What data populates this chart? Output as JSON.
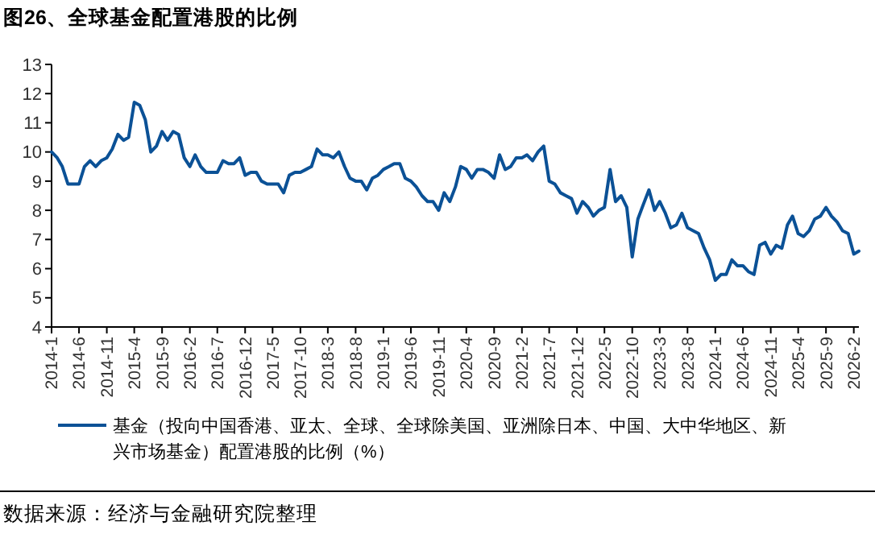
{
  "chart_data": {
    "type": "line",
    "title": "图26、全球基金配置港股的比例",
    "annotations": [
      "数据来源：经济与金融研究院整理"
    ],
    "x": [
      "2014-01",
      "2014-02",
      "2014-03",
      "2014-04",
      "2014-05",
      "2014-06",
      "2014-07",
      "2014-08",
      "2014-09",
      "2014-10",
      "2014-11",
      "2014-12",
      "2015-01",
      "2015-02",
      "2015-03",
      "2015-04",
      "2015-05",
      "2015-06",
      "2015-07",
      "2015-08",
      "2015-09",
      "2015-10",
      "2015-11",
      "2015-12",
      "2016-01",
      "2016-02",
      "2016-03",
      "2016-04",
      "2016-05",
      "2016-06",
      "2016-07",
      "2016-08",
      "2016-09",
      "2016-10",
      "2016-11",
      "2016-12",
      "2017-01",
      "2017-02",
      "2017-03",
      "2017-04",
      "2017-05",
      "2017-06",
      "2017-07",
      "2017-08",
      "2017-09",
      "2017-10",
      "2017-11",
      "2017-12",
      "2018-01",
      "2018-02",
      "2018-03",
      "2018-04",
      "2018-05",
      "2018-06",
      "2018-07",
      "2018-08",
      "2018-09",
      "2018-10",
      "2018-11",
      "2018-12",
      "2019-01",
      "2019-02",
      "2019-03",
      "2019-04",
      "2019-05",
      "2019-06",
      "2019-07",
      "2019-08",
      "2019-09",
      "2019-10",
      "2019-11",
      "2019-12",
      "2020-01",
      "2020-02",
      "2020-03",
      "2020-04",
      "2020-05",
      "2020-06",
      "2020-07",
      "2020-08",
      "2020-09",
      "2020-10",
      "2020-11",
      "2020-12",
      "2021-01",
      "2021-02",
      "2021-03",
      "2021-04",
      "2021-05",
      "2021-06",
      "2021-07",
      "2021-08",
      "2021-09",
      "2021-10",
      "2021-11",
      "2021-12",
      "2022-01",
      "2022-02",
      "2022-03",
      "2022-04",
      "2022-05",
      "2022-06",
      "2022-07",
      "2022-08",
      "2022-09",
      "2022-10",
      "2022-11",
      "2022-12",
      "2023-01",
      "2023-02",
      "2023-03",
      "2023-04",
      "2023-05",
      "2023-06",
      "2023-07",
      "2023-08",
      "2023-09",
      "2023-10",
      "2023-11",
      "2023-12",
      "2024-01",
      "2024-02",
      "2024-03",
      "2024-04",
      "2024-05",
      "2024-06",
      "2024-07",
      "2024-08",
      "2024-09",
      "2024-10",
      "2024-11",
      "2024-12",
      "2025-01",
      "2025-02",
      "2025-03",
      "2025-04",
      "2025-05",
      "2025-06",
      "2025-07",
      "2025-08",
      "2025-09",
      "2025-10",
      "2025-11",
      "2025-12",
      "2026-01",
      "2026-02",
      "2026-03"
    ],
    "series": [
      {
        "name": "基金（投向中国香港、亚太、全球、全球除美国、亚洲除日本、中国、大中华地区、新兴市场基金）配置港股的比例（%）",
        "color": "#0b5196",
        "values": [
          10.0,
          9.8,
          9.5,
          8.9,
          8.9,
          8.9,
          9.5,
          9.7,
          9.5,
          9.7,
          9.8,
          10.1,
          10.6,
          10.4,
          10.5,
          11.7,
          11.6,
          11.1,
          10.0,
          10.2,
          10.7,
          10.4,
          10.7,
          10.6,
          9.8,
          9.5,
          9.9,
          9.5,
          9.3,
          9.3,
          9.3,
          9.7,
          9.6,
          9.6,
          9.8,
          9.2,
          9.3,
          9.3,
          9.0,
          8.9,
          8.9,
          8.9,
          8.6,
          9.2,
          9.3,
          9.3,
          9.4,
          9.5,
          10.1,
          9.9,
          9.9,
          9.8,
          10.0,
          9.5,
          9.1,
          9.0,
          9.0,
          8.7,
          9.1,
          9.2,
          9.4,
          9.5,
          9.6,
          9.6,
          9.1,
          9.0,
          8.8,
          8.5,
          8.3,
          8.3,
          8.0,
          8.6,
          8.3,
          8.8,
          9.5,
          9.4,
          9.1,
          9.4,
          9.4,
          9.3,
          9.1,
          9.9,
          9.4,
          9.5,
          9.8,
          9.8,
          9.9,
          9.7,
          10.0,
          10.2,
          9.0,
          8.9,
          8.6,
          8.5,
          8.4,
          7.9,
          8.3,
          8.1,
          7.8,
          8.0,
          8.1,
          9.4,
          8.3,
          8.5,
          8.1,
          6.4,
          7.7,
          8.2,
          8.7,
          8.0,
          8.3,
          7.9,
          7.4,
          7.5,
          7.9,
          7.4,
          7.3,
          7.2,
          6.7,
          6.3,
          5.6,
          5.8,
          5.8,
          6.3,
          6.1,
          6.1,
          5.9,
          5.8,
          6.8,
          6.9,
          6.5,
          6.8,
          6.7,
          7.5,
          7.8,
          7.2,
          7.1,
          7.3,
          7.7,
          7.8,
          8.1,
          7.8,
          7.6,
          7.3,
          7.2,
          6.5,
          6.6
        ]
      }
    ],
    "xlim": [
      "2014-01",
      "2026-03"
    ],
    "xticks": [
      {
        "value": "2014-01",
        "label": "2014-1"
      },
      {
        "value": "2014-06",
        "label": "2014-6"
      },
      {
        "value": "2014-11",
        "label": "2014-11"
      },
      {
        "value": "2015-04",
        "label": "2015-4"
      },
      {
        "value": "2015-09",
        "label": "2015-9"
      },
      {
        "value": "2016-02",
        "label": "2016-2"
      },
      {
        "value": "2016-07",
        "label": "2016-7"
      },
      {
        "value": "2016-12",
        "label": "2016-12"
      },
      {
        "value": "2017-05",
        "label": "2017-5"
      },
      {
        "value": "2017-10",
        "label": "2017-10"
      },
      {
        "value": "2018-03",
        "label": "2018-3"
      },
      {
        "value": "2018-08",
        "label": "2018-8"
      },
      {
        "value": "2019-01",
        "label": "2019-1"
      },
      {
        "value": "2019-06",
        "label": "2019-6"
      },
      {
        "value": "2019-11",
        "label": "2019-11"
      },
      {
        "value": "2020-04",
        "label": "2020-4"
      },
      {
        "value": "2020-09",
        "label": "2020-9"
      },
      {
        "value": "2021-02",
        "label": "2021-2"
      },
      {
        "value": "2021-07",
        "label": "2021-7"
      },
      {
        "value": "2021-12",
        "label": "2021-12"
      },
      {
        "value": "2022-05",
        "label": "2022-5"
      },
      {
        "value": "2022-10",
        "label": "2022-10"
      },
      {
        "value": "2023-03",
        "label": "2023-3"
      },
      {
        "value": "2023-08",
        "label": "2023-8"
      },
      {
        "value": "2024-01",
        "label": "2024-1"
      },
      {
        "value": "2024-06",
        "label": "2024-6"
      },
      {
        "value": "2024-11",
        "label": "2024-11"
      },
      {
        "value": "2025-04",
        "label": "2025-4"
      },
      {
        "value": "2025-09",
        "label": "2025-9"
      },
      {
        "value": "2026-02",
        "label": "2026-2"
      }
    ],
    "ylim": [
      4,
      13
    ],
    "yticks": [
      4,
      5,
      6,
      7,
      8,
      9,
      10,
      11,
      12,
      13
    ],
    "grid": false,
    "legend": "bottom",
    "marker": "none",
    "line_style": "solid"
  }
}
